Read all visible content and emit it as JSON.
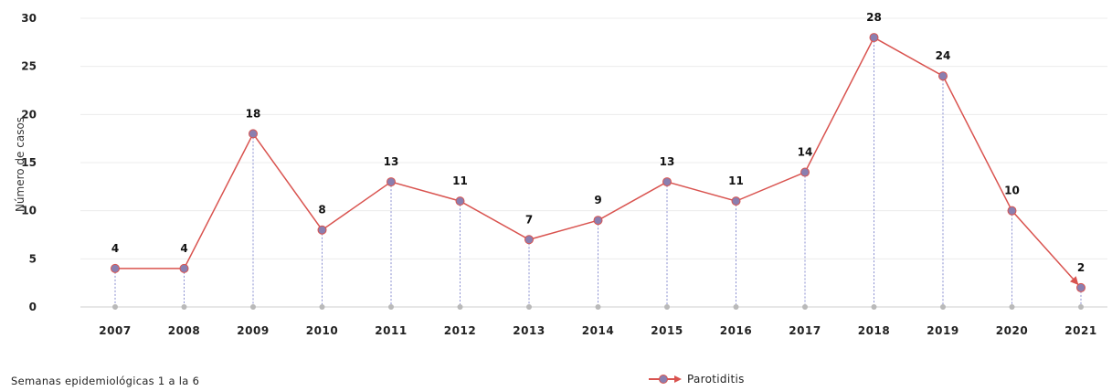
{
  "chart_data": {
    "type": "line",
    "categories": [
      "2007",
      "2008",
      "2009",
      "2010",
      "2011",
      "2012",
      "2013",
      "2014",
      "2015",
      "2016",
      "2017",
      "2018",
      "2019",
      "2020",
      "2021"
    ],
    "series": [
      {
        "name": "Parotiditis",
        "values": [
          4,
          4,
          18,
          8,
          13,
          11,
          7,
          9,
          13,
          11,
          14,
          28,
          24,
          10,
          2
        ],
        "color": "#d9534f",
        "marker_color": "#8a7fb0"
      }
    ],
    "ylabel": "Número de casos",
    "xlabel": "",
    "ylim": [
      0,
      30
    ],
    "yticks": [
      0,
      5,
      10,
      15,
      20,
      25,
      30
    ],
    "grid": true,
    "data_labels": true,
    "drop_lines": true,
    "legend_position": "bottom-center",
    "footnote": "Semanas epidemiológicas 1 a la 6"
  }
}
